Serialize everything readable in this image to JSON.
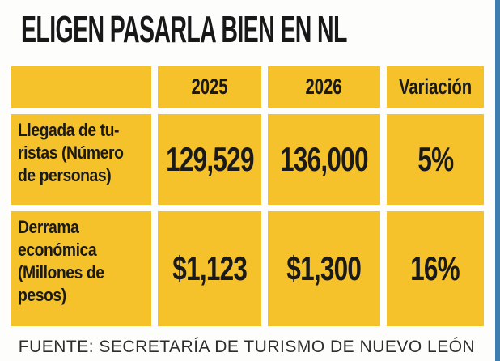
{
  "title": "ELIGEN PASARLA BIEN EN NL",
  "source": "FUENTE: SECRETARÍA DE TURISMO DE NUEVO LEÓN",
  "colors": {
    "cell_yellow": "#F5C22C",
    "edge_blue": "#3E7DAE",
    "text_black": "#1A1A1A",
    "background": "#FDFDFB"
  },
  "table": {
    "column_headers": [
      "",
      "2025",
      "2026",
      "Variación"
    ],
    "rows": [
      {
        "label_lines": "Llegada de tu-\nristas (Número\nde personas)",
        "values": [
          "129,529",
          "136,000",
          "5%"
        ]
      },
      {
        "label_lines": "Derrama\neconómica\n(Millones de\npesos)",
        "values": [
          "$1,123",
          "$1,300",
          "16%"
        ]
      }
    ]
  },
  "chart_data": {
    "type": "table",
    "title": "ELIGEN PASARLA BIEN EN NL",
    "columns": [
      "",
      "2025",
      "2026",
      "Variación"
    ],
    "rows": [
      [
        "Llegada de turistas (Número de personas)",
        "129,529",
        "136,000",
        "5%"
      ],
      [
        "Derrama económica (Millones de pesos)",
        "$1,123",
        "$1,300",
        "16%"
      ]
    ],
    "source": "FUENTE: SECRETARÍA DE TURISMO DE NUEVO LEÓN"
  }
}
